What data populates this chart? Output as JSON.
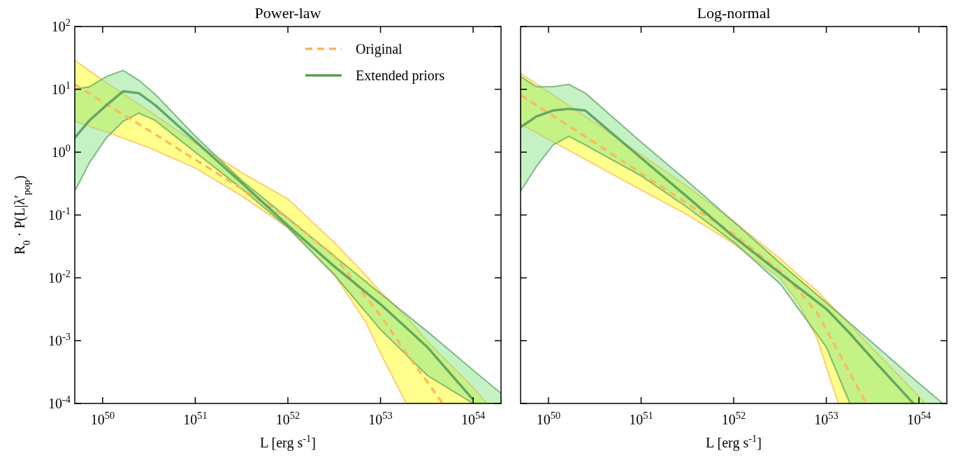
{
  "chart_data": [
    {
      "type": "line",
      "title": "Power-law",
      "xlabel": "L [erg s$^{-1}$]",
      "ylabel": "R$_{0}$ · P(L|λ′$_{pop}$)",
      "log": "xy",
      "legend": "top right",
      "grid": false,
      "xlim": [
        5e+49,
        2e+54
      ],
      "ylim": [
        0.0001,
        100
      ],
      "xticks": [
        {
          "value": 1e+50,
          "label": "10$^{50}$"
        },
        {
          "value": 1e+51,
          "label": "10$^{51}$"
        },
        {
          "value": 1e+52,
          "label": "10$^{52}$"
        },
        {
          "value": 1e+53,
          "label": "10$^{53}$"
        },
        {
          "value": 1e+54,
          "label": "10$^{54}$"
        }
      ],
      "yticks": [
        {
          "value": 0.0001,
          "label": "10$^{-4}$"
        },
        {
          "value": 0.001,
          "label": "10$^{-3}$"
        },
        {
          "value": 0.01,
          "label": "10$^{-2}$"
        },
        {
          "value": 0.1,
          "label": "10$^{-1}$"
        },
        {
          "value": 1,
          "label": "10$^{0}$"
        },
        {
          "value": 10,
          "label": "10$^{1}$"
        },
        {
          "value": 100,
          "label": "10$^{2}$"
        }
      ],
      "series": [
        {
          "name": "Original",
          "line_style": "dashed",
          "color": "#ffb45a",
          "x": [
            5e+49,
            1e+50,
            3.2e+50,
            1e+51,
            3.2e+51,
            1e+52,
            3.2e+52,
            6.9e+52,
            1e+53,
            1.9e+53,
            3.2e+53,
            4.7e+53,
            1e+54,
            1.4e+54
          ],
          "values": [
            12,
            6.3,
            2.2,
            0.76,
            0.26,
            0.089,
            0.022,
            0.005,
            0.0025,
            0.00063,
            0.00022,
            0.0001,
            null,
            null
          ],
          "upper": [
            29,
            14,
            4.5,
            1.4,
            0.47,
            0.18,
            0.036,
            0.011,
            0.006,
            0.0024,
            0.00098,
            0.00055,
            0.00018,
            0.0001
          ],
          "lower": [
            3.1,
            2.2,
            1.17,
            0.56,
            0.2,
            0.063,
            0.011,
            0.002,
            0.00063,
            0.0001,
            0.0001,
            0.0001,
            0.0001,
            0.0001
          ]
        },
        {
          "name": "Extended priors",
          "line_style": "solid",
          "color": "#5a9e5a",
          "x": [
            5e+49,
            7.2e+49,
            1.1e+50,
            1.66e+50,
            2.45e+50,
            3.7e+50,
            1e+51,
            3.2e+51,
            1e+52,
            3.2e+52,
            1e+53,
            3.2e+53,
            1e+54,
            2e+54
          ],
          "values": [
            1.7,
            3.2,
            5.6,
            9.3,
            8.7,
            5.6,
            1.5,
            0.32,
            0.068,
            0.015,
            0.0038,
            0.00079,
            0.000115,
            null
          ],
          "upper": [
            10,
            11,
            16,
            20,
            14,
            8.3,
            1.8,
            0.35,
            0.089,
            0.022,
            0.0056,
            0.0014,
            0.00034,
            0.000145
          ],
          "lower": [
            0.24,
            0.68,
            1.7,
            3.1,
            4.2,
            3.2,
            1.0,
            0.26,
            0.063,
            0.011,
            0.0015,
            0.00028,
            0.0001,
            0.0001
          ]
        }
      ]
    },
    {
      "type": "line",
      "title": "Log-normal",
      "xlabel": "L [erg s$^{-1}$]",
      "log": "xy",
      "grid": false,
      "tick_labels": "x",
      "xlim": [
        5e+49,
        2e+54
      ],
      "ylim": [
        0.0001,
        100
      ],
      "xticks": [
        {
          "value": 1e+50,
          "label": "10$^{50}$"
        },
        {
          "value": 1e+51,
          "label": "10$^{51}$"
        },
        {
          "value": 1e+52,
          "label": "10$^{52}$"
        },
        {
          "value": 1e+53,
          "label": "10$^{53}$"
        },
        {
          "value": 1e+54,
          "label": "10$^{54}$"
        }
      ],
      "yticks": [
        {
          "value": 0.0001,
          "label": null
        },
        {
          "value": 0.001,
          "label": null
        },
        {
          "value": 0.01,
          "label": null
        },
        {
          "value": 0.1,
          "label": null
        },
        {
          "value": 1,
          "label": null
        },
        {
          "value": 10,
          "label": null
        },
        {
          "value": 100,
          "label": null
        }
      ],
      "series": [
        {
          "line_style": "dashed",
          "color": "#ffb45a",
          "x": [
            5e+49,
            1e+50,
            3.2e+50,
            1e+51,
            3.2e+51,
            1e+52,
            3.2e+52,
            5e+52,
            7.9e+52,
            1.35e+53,
            2.7e+53,
            1.15e+54
          ],
          "values": [
            8.1,
            4.2,
            1.4,
            0.46,
            0.15,
            0.05,
            0.0126,
            0.0063,
            0.0028,
            0.00066,
            0.0001,
            null
          ],
          "upper": [
            18,
            9.1,
            2.9,
            0.91,
            0.28,
            0.079,
            0.02,
            0.011,
            0.0062,
            0.0028,
            0.00095,
            0.000105
          ],
          "lower": [
            2.8,
            1.6,
            0.63,
            0.25,
            0.1,
            0.035,
            0.0098,
            0.004,
            0.0011,
            0.0001,
            0.0001,
            0.0001
          ]
        },
        {
          "line_style": "solid",
          "color": "#5a9e5a",
          "x": [
            5e+49,
            7.4e+49,
            1.12e+50,
            1.66e+50,
            2.5e+50,
            1e+51,
            3.2e+51,
            1e+52,
            3.2e+52,
            1e+53,
            1.8e+53,
            3.2e+53,
            8.7e+53,
            1.74e+54
          ],
          "values": [
            2.5,
            3.7,
            4.6,
            4.9,
            4.6,
            0.81,
            0.19,
            0.045,
            0.0117,
            0.0032,
            0.0013,
            0.0005,
            0.0001,
            null
          ],
          "upper": [
            16,
            11,
            11,
            12,
            8.7,
            1.45,
            0.34,
            0.078,
            0.017,
            0.004,
            0.0019,
            0.00091,
            0.00025,
            0.000105
          ],
          "lower": [
            0.24,
            0.59,
            1.3,
            1.8,
            1.3,
            0.42,
            0.13,
            0.037,
            0.0079,
            0.00079,
            0.0001,
            0.0001,
            0.0001,
            0.0001
          ]
        }
      ]
    }
  ]
}
